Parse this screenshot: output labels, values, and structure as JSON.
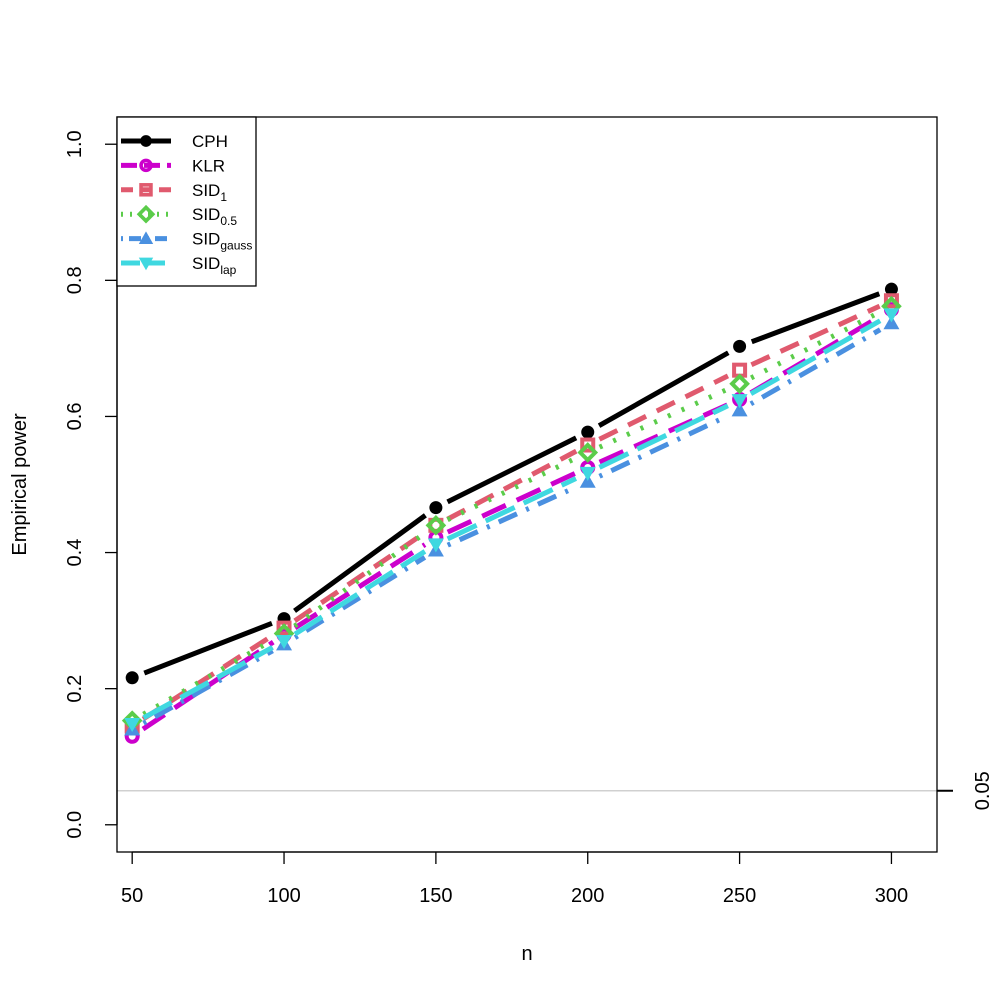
{
  "chart_data": {
    "type": "line",
    "xlabel": "n",
    "ylabel": "Empirical power",
    "x": [
      50,
      100,
      150,
      200,
      250,
      300
    ],
    "x_ticks": [
      "50",
      "100",
      "150",
      "200",
      "250",
      "300"
    ],
    "y_ticks": [
      "0.0",
      "0.2",
      "0.4",
      "0.6",
      "0.8",
      "1.0"
    ],
    "xlim": [
      45,
      315
    ],
    "ylim": [
      -0.04,
      1.04
    ],
    "legend_position": "top-left",
    "reference_line": {
      "value": 0.05,
      "label": "0.05",
      "color": "#d0d0d0",
      "label_color": "#ff0000"
    },
    "series": [
      {
        "name": "CPH",
        "sub": "",
        "color": "#000000",
        "dash": "",
        "marker": "circle",
        "values": [
          0.216,
          0.303,
          0.466,
          0.577,
          0.703,
          0.787
        ]
      },
      {
        "name": "KLR",
        "sub": "",
        "color": "#cc00cc",
        "dash": "26 12",
        "marker": "circle-open",
        "values": [
          0.13,
          0.279,
          0.422,
          0.525,
          0.625,
          0.757
        ]
      },
      {
        "name": "SID",
        "sub": "1",
        "color": "#e05a6e",
        "dash": "20 12",
        "marker": "square-open",
        "values": [
          0.145,
          0.289,
          0.44,
          0.558,
          0.668,
          0.77
        ]
      },
      {
        "name": "SID",
        "sub": "0.5",
        "color": "#5bcc4a",
        "dash": "3 12",
        "marker": "diamond-open",
        "values": [
          0.153,
          0.281,
          0.44,
          0.547,
          0.648,
          0.762
        ]
      },
      {
        "name": "SID",
        "sub": "gauss",
        "color": "#4a90e0",
        "dash": "3 10 20 10",
        "marker": "triangle-up",
        "values": [
          0.14,
          0.265,
          0.403,
          0.504,
          0.609,
          0.737
        ]
      },
      {
        "name": "SID",
        "sub": "lap",
        "color": "#3fd8e0",
        "dash": "32 10",
        "marker": "triangle-down",
        "values": [
          0.148,
          0.27,
          0.412,
          0.517,
          0.624,
          0.75
        ]
      }
    ]
  }
}
